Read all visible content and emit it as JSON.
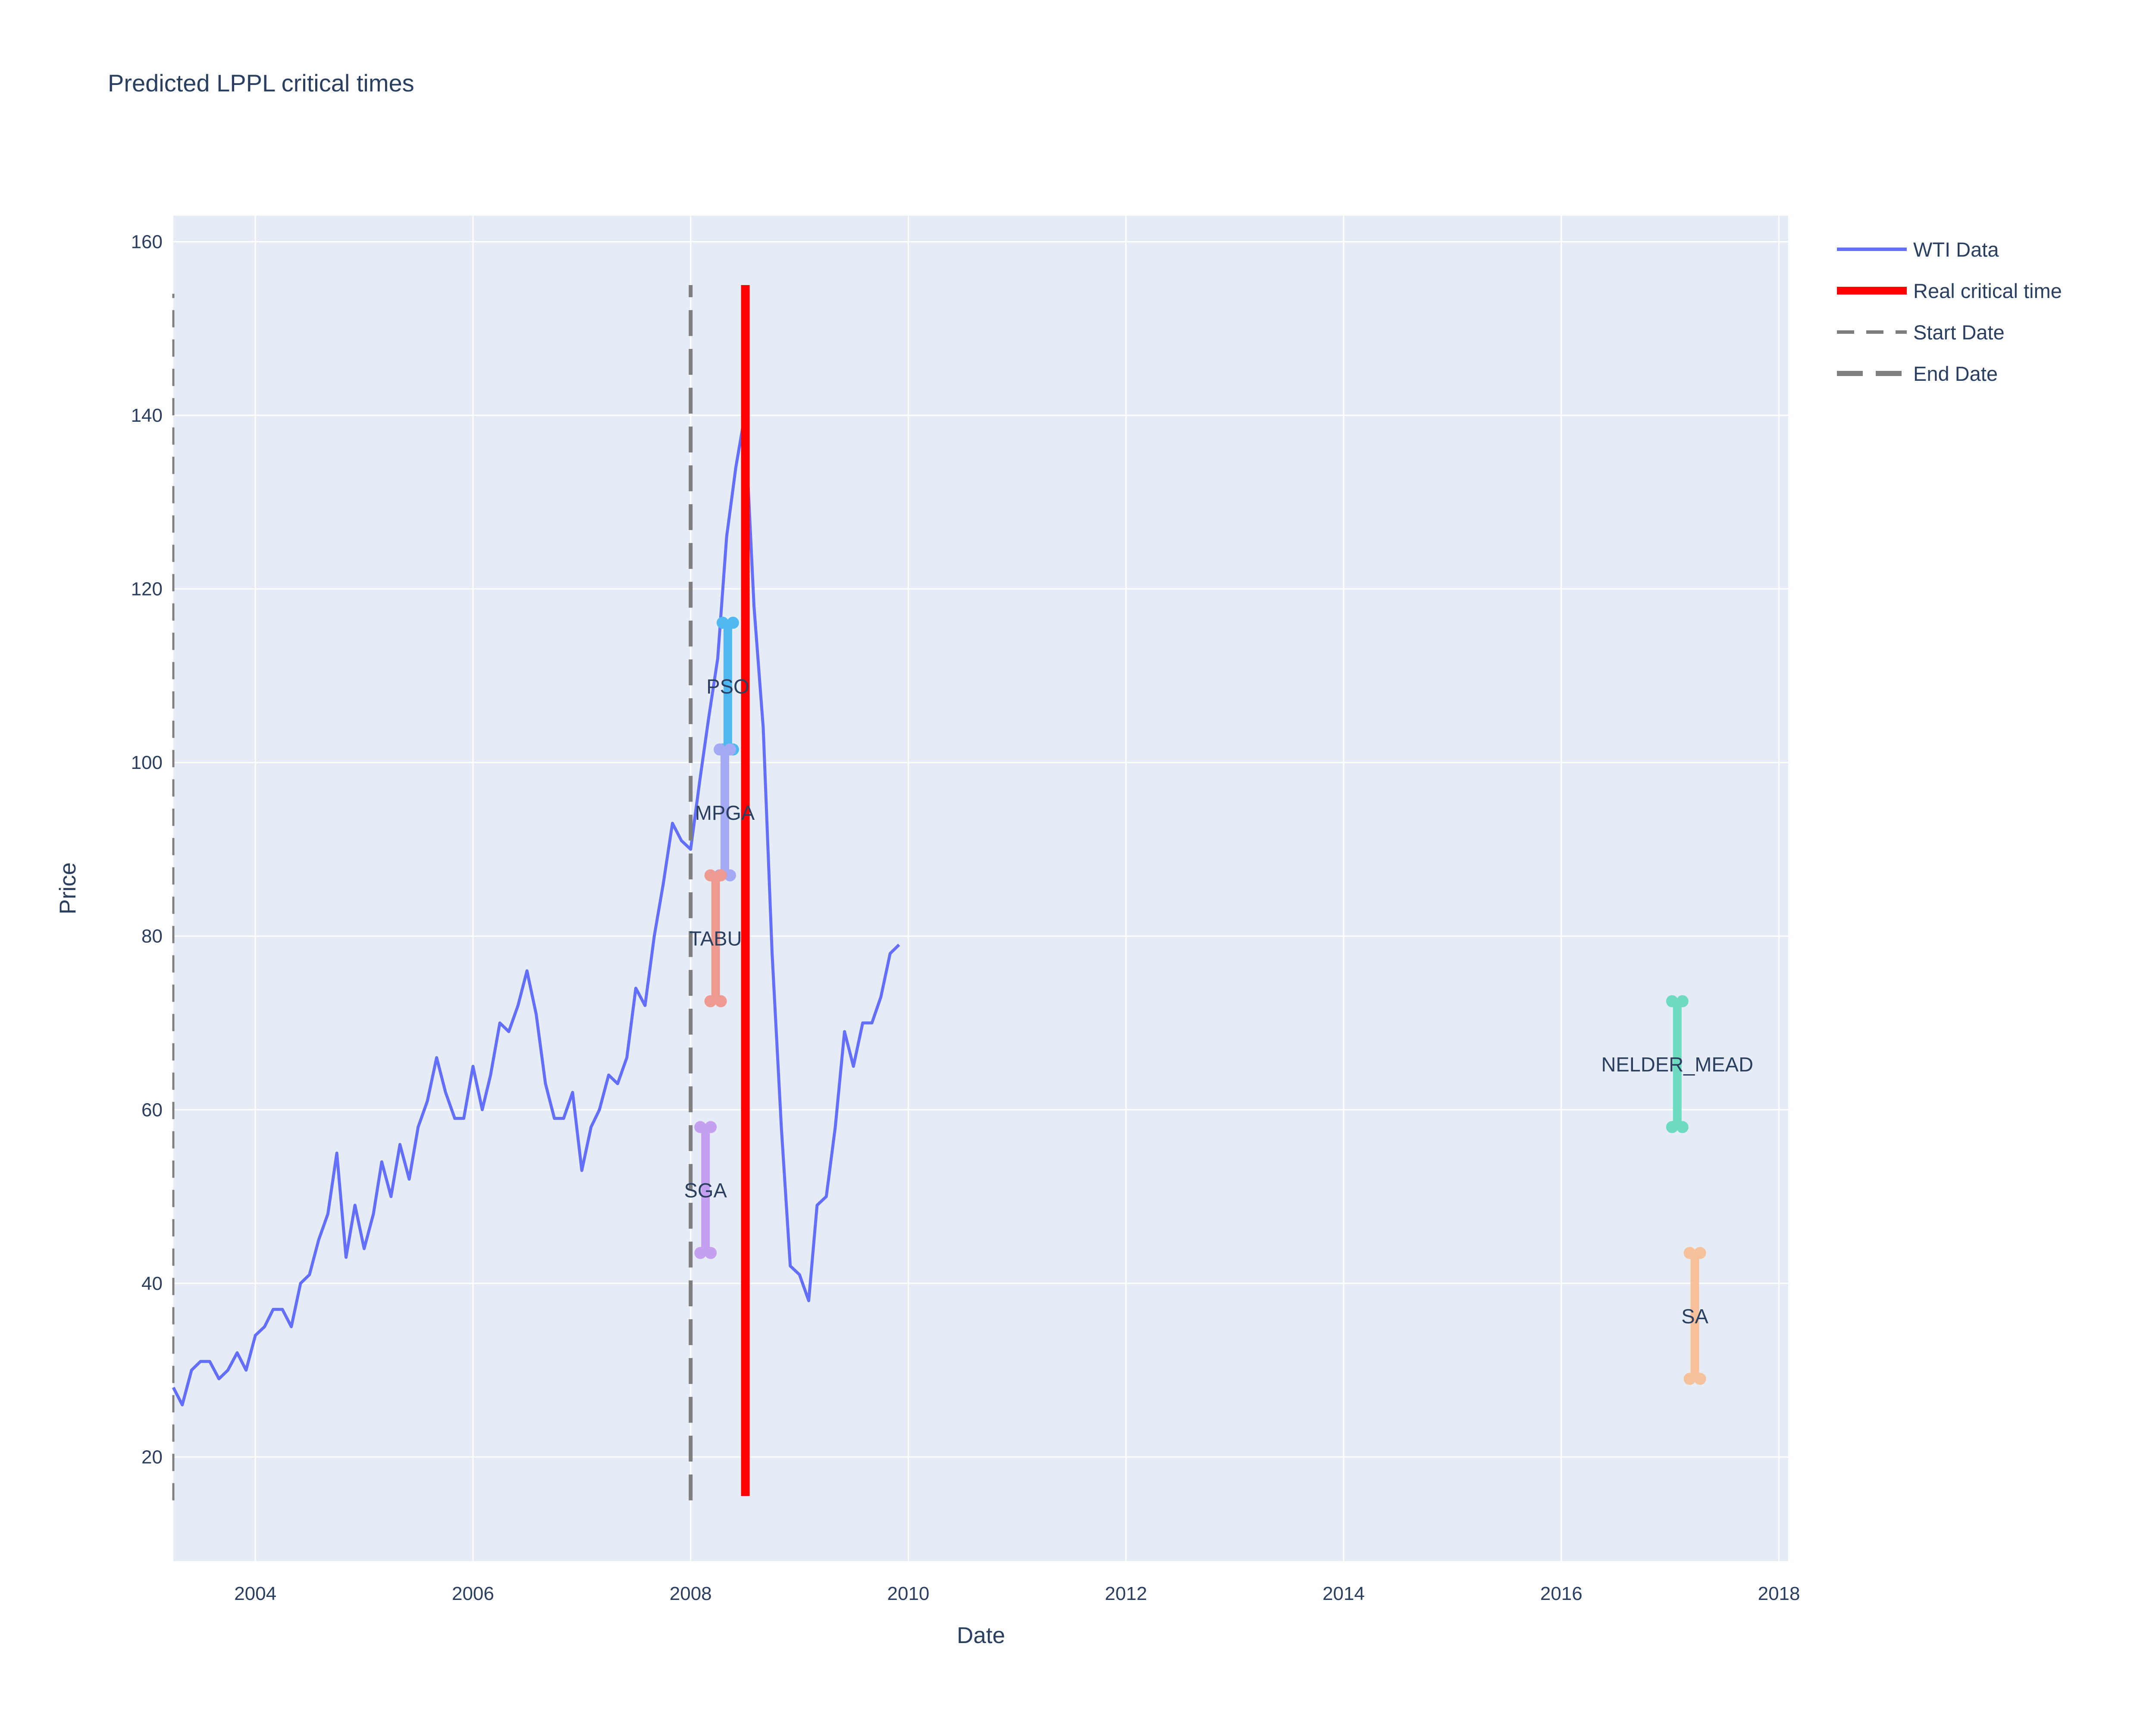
{
  "chart_data": {
    "type": "line",
    "title": "Predicted LPPL critical times",
    "xlabel": "Date",
    "ylabel": "Price",
    "xlim": [
      "2003-04-01",
      "2018-02-01"
    ],
    "ylim": [
      8,
      163
    ],
    "x_ticks": [
      "2004",
      "2006",
      "2008",
      "2010",
      "2012",
      "2014",
      "2016",
      "2018"
    ],
    "y_ticks": [
      20,
      40,
      60,
      80,
      100,
      120,
      140,
      160
    ],
    "grid": true,
    "legend_position": "top-right",
    "colors": {
      "background": "#e5ecf6",
      "grid": "#ffffff",
      "wti": "#636efa",
      "critical": "#ff0000",
      "dates": "#7f7f7f"
    },
    "series": [
      {
        "name": "WTI Data",
        "x": [
          "2003-04-01",
          "2003-05-01",
          "2003-06-01",
          "2003-07-01",
          "2003-08-01",
          "2003-09-01",
          "2003-10-01",
          "2003-11-01",
          "2003-12-01",
          "2004-01-01",
          "2004-02-01",
          "2004-03-01",
          "2004-04-01",
          "2004-05-01",
          "2004-06-01",
          "2004-07-01",
          "2004-08-01",
          "2004-09-01",
          "2004-10-01",
          "2004-11-01",
          "2004-12-01",
          "2005-01-01",
          "2005-02-01",
          "2005-03-01",
          "2005-04-01",
          "2005-05-01",
          "2005-06-01",
          "2005-07-01",
          "2005-08-01",
          "2005-09-01",
          "2005-10-01",
          "2005-11-01",
          "2005-12-01",
          "2006-01-01",
          "2006-02-01",
          "2006-03-01",
          "2006-04-01",
          "2006-05-01",
          "2006-06-01",
          "2006-07-01",
          "2006-08-01",
          "2006-09-01",
          "2006-10-01",
          "2006-11-01",
          "2006-12-01",
          "2007-01-01",
          "2007-02-01",
          "2007-03-01",
          "2007-04-01",
          "2007-05-01",
          "2007-06-01",
          "2007-07-01",
          "2007-08-01",
          "2007-09-01",
          "2007-10-01",
          "2007-11-01",
          "2007-12-01",
          "2008-01-01",
          "2008-02-01",
          "2008-03-01",
          "2008-04-01",
          "2008-05-01",
          "2008-06-01",
          "2008-07-01",
          "2008-08-01",
          "2008-09-01",
          "2008-10-01",
          "2008-11-01",
          "2008-12-01",
          "2009-01-01",
          "2009-02-01",
          "2009-03-01",
          "2009-04-01",
          "2009-05-01",
          "2009-06-01",
          "2009-07-01",
          "2009-08-01",
          "2009-09-01",
          "2009-10-01",
          "2009-11-01",
          "2009-12-01"
        ],
        "y": [
          28,
          26,
          30,
          31,
          31,
          29,
          30,
          32,
          30,
          34,
          35,
          37,
          37,
          35,
          40,
          41,
          45,
          48,
          55,
          43,
          49,
          44,
          48,
          54,
          50,
          56,
          52,
          58,
          61,
          66,
          62,
          59,
          59,
          65,
          60,
          64,
          70,
          69,
          72,
          76,
          71,
          63,
          59,
          59,
          62,
          53,
          58,
          60,
          64,
          63,
          66,
          74,
          72,
          80,
          86,
          93,
          91,
          90,
          98,
          105,
          112,
          126,
          134,
          140,
          118,
          104,
          78,
          58,
          42,
          41,
          38,
          49,
          50,
          58,
          69,
          65,
          70,
          70,
          73,
          78,
          79
        ]
      }
    ],
    "critical_lines": [
      {
        "name": "Real critical time",
        "date": "2008-07-03",
        "y_range": [
          15.5,
          155
        ]
      },
      {
        "name": "Start Date",
        "date": "2003-04-01",
        "y_range": [
          15,
          154
        ]
      },
      {
        "name": "End Date",
        "date": "2008-01-01",
        "y_range": [
          15,
          155
        ]
      }
    ],
    "predictions": [
      {
        "name": "PSO",
        "date": "2008-05-05",
        "y_range": [
          101.5,
          116.1
        ],
        "color": "#50b8f0"
      },
      {
        "name": "MPGA",
        "date": "2008-04-25",
        "y_range": [
          87,
          101.5
        ],
        "color": "#a4aaf4"
      },
      {
        "name": "TABU",
        "date": "2008-03-25",
        "y_range": [
          72.5,
          87
        ],
        "color": "#ee9a90"
      },
      {
        "name": "SGA",
        "date": "2008-02-20",
        "y_range": [
          43.5,
          58
        ],
        "color": "#c59ff0"
      },
      {
        "name": "NELDER_MEAD",
        "date": "2017-01-25",
        "y_range": [
          58,
          72.5
        ],
        "color": "#6edbc0"
      },
      {
        "name": "SA",
        "date": "2017-03-25",
        "y_range": [
          29,
          43.5
        ],
        "color": "#f5c09a"
      }
    ],
    "legend": [
      "WTI Data",
      "Real critical time",
      "Start Date",
      "End Date"
    ]
  }
}
